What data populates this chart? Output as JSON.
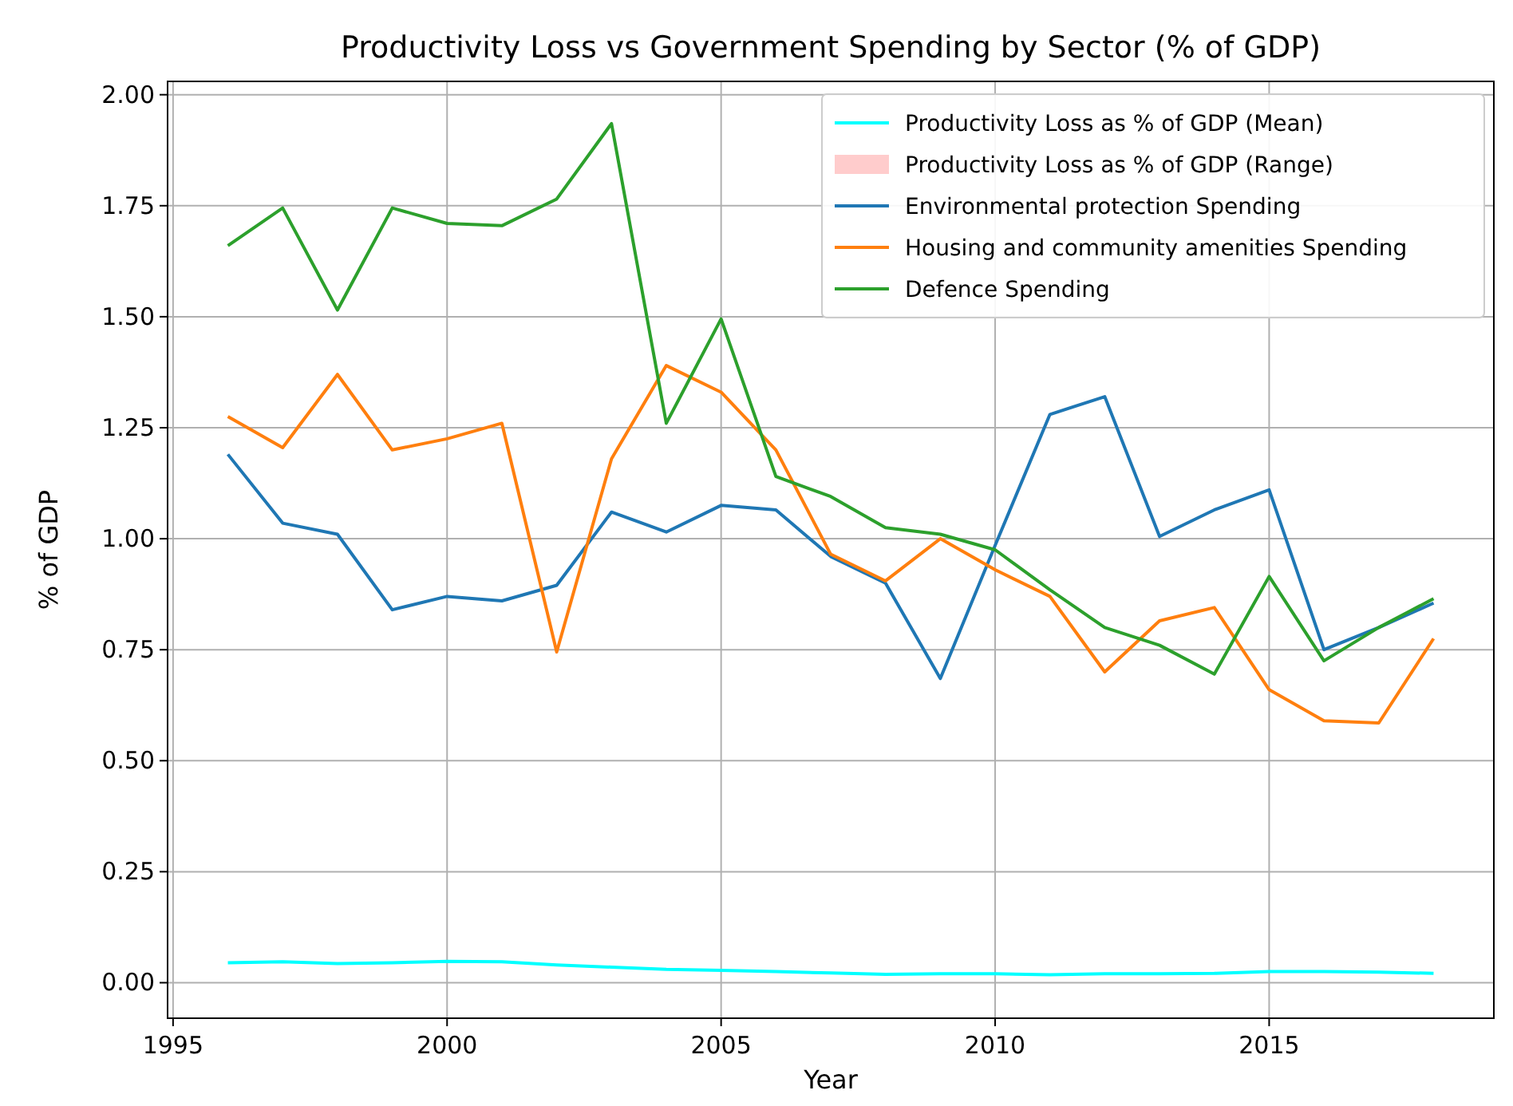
{
  "chart_data": {
    "type": "line",
    "title": "Productivity Loss vs Government Spending by Sector (% of GDP)",
    "xlabel": "Year",
    "ylabel": "% of GDP",
    "x": [
      1996,
      1997,
      1998,
      1999,
      2000,
      2001,
      2002,
      2003,
      2004,
      2005,
      2006,
      2007,
      2008,
      2009,
      2010,
      2011,
      2012,
      2013,
      2014,
      2015,
      2016,
      2017,
      2018
    ],
    "series": [
      {
        "name": "Productivity Loss as % of GDP (Mean)",
        "color": "#00ffff",
        "values": [
          0.045,
          0.047,
          0.043,
          0.045,
          0.048,
          0.047,
          0.04,
          0.035,
          0.03,
          0.028,
          0.025,
          0.022,
          0.019,
          0.02,
          0.02,
          0.018,
          0.02,
          0.02,
          0.021,
          0.025,
          0.025,
          0.024,
          0.021
        ]
      },
      {
        "name": "Productivity Loss as % of GDP (Range)",
        "type": "area",
        "color": "#ffcccc",
        "values": [
          null,
          null,
          null,
          null,
          null,
          null,
          null,
          null,
          null,
          null,
          null,
          null,
          null,
          null,
          null,
          null,
          null,
          null,
          null,
          null,
          null,
          null,
          null
        ]
      },
      {
        "name": "Environmental protection Spending",
        "color": "#1f77b4",
        "values": [
          1.19,
          1.035,
          1.01,
          0.84,
          0.87,
          0.86,
          0.895,
          1.06,
          1.015,
          1.075,
          1.065,
          0.96,
          0.9,
          0.685,
          0.985,
          1.28,
          1.32,
          1.005,
          1.065,
          1.11,
          0.75,
          0.8,
          0.855
        ]
      },
      {
        "name": "Housing and community amenities Spending",
        "color": "#ff7f0e",
        "values": [
          1.275,
          1.205,
          1.37,
          1.2,
          1.225,
          1.26,
          0.745,
          1.18,
          1.39,
          1.33,
          1.2,
          0.965,
          0.905,
          1.0,
          0.93,
          0.87,
          0.7,
          0.815,
          0.845,
          0.66,
          0.59,
          0.585,
          0.775
        ]
      },
      {
        "name": "Defence Spending",
        "color": "#2ca02c",
        "values": [
          1.66,
          1.745,
          1.515,
          1.745,
          1.71,
          1.705,
          1.765,
          1.935,
          1.26,
          1.495,
          1.14,
          1.095,
          1.025,
          1.01,
          0.975,
          0.885,
          0.8,
          0.76,
          0.695,
          0.915,
          0.725,
          0.8,
          0.865
        ]
      }
    ],
    "xlim": [
      1994.9,
      2019.1
    ],
    "xticks": [
      1995,
      2000,
      2005,
      2010,
      2015
    ],
    "ylim": [
      -0.08,
      2.03
    ],
    "yticks": [
      {
        "value": 0,
        "label": "0.00"
      },
      {
        "value": 0.25,
        "label": "0.25"
      },
      {
        "value": 0.5,
        "label": "0.50"
      },
      {
        "value": 0.75,
        "label": "0.75"
      },
      {
        "value": 1,
        "label": "1.00"
      },
      {
        "value": 1.25,
        "label": "1.25"
      },
      {
        "value": 1.5,
        "label": "1.50"
      },
      {
        "value": 1.75,
        "label": "1.75"
      },
      {
        "value": 2,
        "label": "2.00"
      }
    ],
    "grid": true,
    "legend": "top right"
  }
}
